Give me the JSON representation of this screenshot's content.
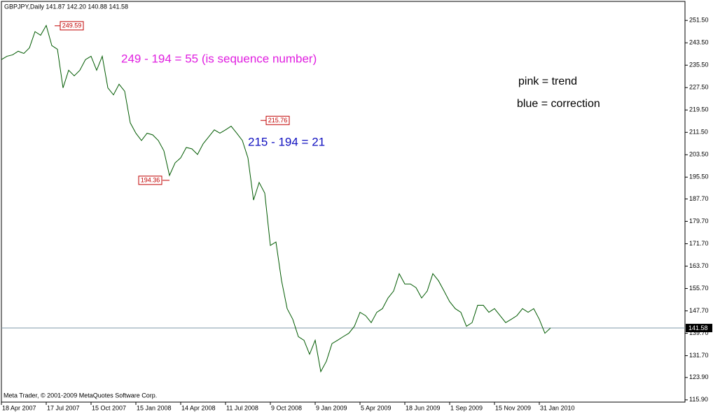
{
  "chart_data": {
    "type": "line",
    "title": "GBPJPY,Daily  141.87 142.20 140.88 141.58",
    "footer": "Meta Trader, © 2001-2009 MetaQuotes Software Corp.",
    "categories": [
      "18 Apr 2007",
      null,
      null,
      null,
      null,
      null,
      null,
      null,
      "17 Jul 2007",
      null,
      null,
      null,
      null,
      null,
      null,
      null,
      "15 Oct 2007",
      null,
      null,
      null,
      null,
      null,
      null,
      null,
      "15 Jan 2008",
      null,
      null,
      null,
      null,
      null,
      null,
      null,
      "14 Apr 2008",
      null,
      null,
      null,
      null,
      null,
      null,
      null,
      "11 Jul 2008",
      null,
      null,
      null,
      null,
      null,
      null,
      null,
      "9 Oct 2008",
      null,
      null,
      null,
      null,
      null,
      null,
      null,
      "9 Jan 2009",
      null,
      null,
      null,
      null,
      null,
      null,
      null,
      "5 Apr 2009",
      null,
      null,
      null,
      null,
      null,
      null,
      null,
      "18 Jun 2009",
      null,
      null,
      null,
      null,
      null,
      null,
      null,
      "1 Sep 2009",
      null,
      null,
      null,
      null,
      null,
      null,
      null,
      "15 Nov 2009",
      null,
      null,
      null,
      null,
      null,
      null,
      null,
      "31 Jan 2010",
      null,
      null
    ],
    "series": [
      {
        "name": "GBPJPY",
        "color": "#005a00",
        "values": [
          237.5,
          238.7,
          239.2,
          240.5,
          239.7,
          241.7,
          247.5,
          246.2,
          249.7,
          242.5,
          241.2,
          227.4,
          233.7,
          231.7,
          233.7,
          237.5,
          238.7,
          233.7,
          238.7,
          227.4,
          224.9,
          228.7,
          226.2,
          214.9,
          211.2,
          208.6,
          211.2,
          210.6,
          208.6,
          204.9,
          196.1,
          200.6,
          202.4,
          206.1,
          205.6,
          203.6,
          207.4,
          209.9,
          212.4,
          211.2,
          212.4,
          213.7,
          211.2,
          208.6,
          202.4,
          187.3,
          193.6,
          189.8,
          171.1,
          172.3,
          158.5,
          148.5,
          144.7,
          138.5,
          137.2,
          132.2,
          137.2,
          126.0,
          129.7,
          136.0,
          137.2,
          138.5,
          139.7,
          142.2,
          147.2,
          146.0,
          143.5,
          147.2,
          148.5,
          152.3,
          154.8,
          161.0,
          157.3,
          157.3,
          156.0,
          152.3,
          154.8,
          161.0,
          158.5,
          154.8,
          151.0,
          148.5,
          147.2,
          142.2,
          143.5,
          149.7,
          149.7,
          147.2,
          148.5,
          146.0,
          143.5,
          144.7,
          146.0,
          148.5,
          147.2,
          148.5,
          144.7,
          139.7,
          141.6
        ]
      }
    ],
    "ylim": [
      115.1,
      258.3
    ],
    "yticks": [
      {
        "value": 251.5,
        "label": "251.50"
      },
      {
        "value": 243.5,
        "label": "243.50"
      },
      {
        "value": 235.5,
        "label": "235.50"
      },
      {
        "value": 227.5,
        "label": "227.50"
      },
      {
        "value": 219.5,
        "label": "219.50"
      },
      {
        "value": 211.5,
        "label": "211.50"
      },
      {
        "value": 203.5,
        "label": "203.50"
      },
      {
        "value": 195.5,
        "label": "195.50"
      },
      {
        "value": 187.7,
        "label": "187.70"
      },
      {
        "value": 179.7,
        "label": "179.70"
      },
      {
        "value": 171.7,
        "label": "171.70"
      },
      {
        "value": 163.7,
        "label": "163.70"
      },
      {
        "value": 155.7,
        "label": "155.70"
      },
      {
        "value": 147.7,
        "label": "147.70"
      },
      {
        "value": 139.7,
        "label": "139.70"
      },
      {
        "value": 131.7,
        "label": "131.70"
      },
      {
        "value": 123.9,
        "label": "123.90"
      },
      {
        "value": 115.9,
        "label": "115.90"
      }
    ],
    "current_price": 141.58,
    "price_labels": [
      249.59,
      215.76,
      194.36
    ],
    "annotations": [
      {
        "text": "249 - 194 =  55 (is sequence number)",
        "color": "#e020e0"
      },
      {
        "text": "215 - 194 = 21",
        "color": "#1010c0"
      },
      {
        "text": "pink = trend",
        "color": "#000000"
      },
      {
        "text": "blue = correction",
        "color": "#000000"
      }
    ]
  }
}
